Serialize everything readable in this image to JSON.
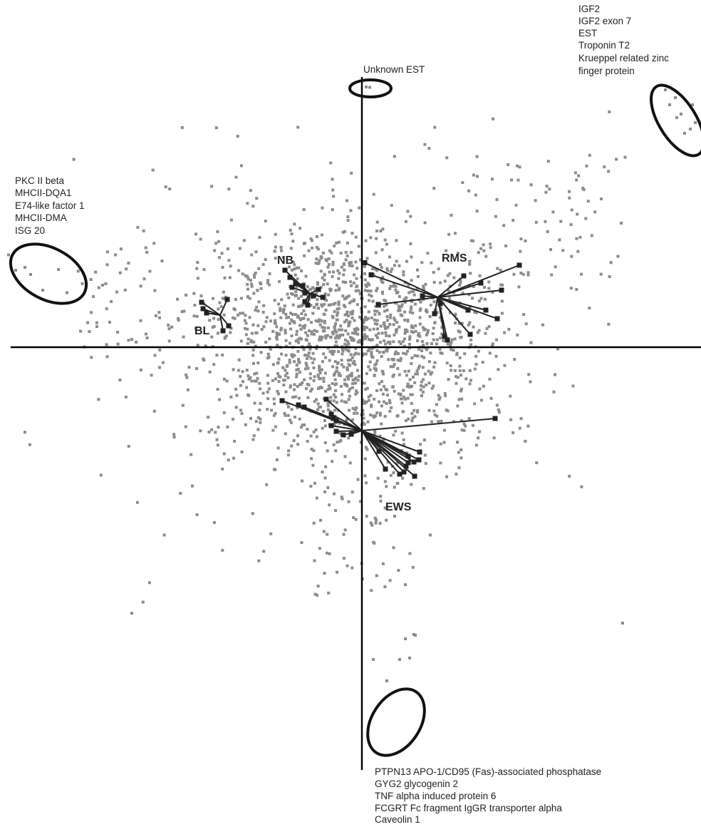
{
  "chart_data": {
    "type": "scatter",
    "title": "",
    "xlabel": "",
    "ylabel": "",
    "grid": false,
    "xlim": [
      -1,
      1
    ],
    "ylim": [
      -1,
      1
    ],
    "colors": {
      "genes": "#8c8c8c",
      "samples": "#222222",
      "axes": "#000000"
    },
    "annotations": [
      {
        "name": "unknown-est",
        "lines": [
          "Unknown EST"
        ]
      },
      {
        "name": "top-right",
        "lines": [
          "IGF2",
          "IGF2 exon 7",
          "EST",
          "Troponin T2",
          "Krueppel related zinc",
          "finger protein"
        ]
      },
      {
        "name": "left",
        "lines": [
          "PKC II beta",
          "MHCII-DQA1",
          "E74-like factor 1",
          "MHCII-DMA",
          "ISG 20"
        ]
      },
      {
        "name": "bottom",
        "lines": [
          "PTPN13 APO-1/CD95 (Fas)-associated phosphatase",
          "GYG2 glycogenin 2",
          "TNF alpha induced protein 6",
          "FCGRT Fc fragment IgGR transporter alpha",
          "Caveolin 1"
        ]
      }
    ],
    "groups": [
      {
        "label": "RMS",
        "centroid": [
          0.2165,
          0.1429
        ],
        "samples": [
          [
            0.0081,
            0.2418
          ],
          [
            0.0264,
            0.2071
          ],
          [
            0.0467,
            0.1224
          ],
          [
            0.1728,
            0.1469
          ],
          [
            0.2073,
            0.0959
          ],
          [
            0.2236,
            0.1255
          ],
          [
            0.2358,
            0.0306
          ],
          [
            0.2439,
            0.0204
          ],
          [
            0.2907,
            0.2041
          ],
          [
            0.3028,
            0.1061
          ],
          [
            0.3089,
            0.0367
          ],
          [
            0.3394,
            0.1837
          ],
          [
            0.3537,
            0.1061
          ],
          [
            0.3862,
            0.0816
          ],
          [
            0.3984,
            0.1633
          ],
          [
            0.4492,
            0.2347
          ]
        ]
      },
      {
        "label": "NB",
        "centroid": [
          -0.1484,
          0.1531
        ],
        "samples": [
          [
            -0.2195,
            0.2204
          ],
          [
            -0.2053,
            0.2
          ],
          [
            -0.1992,
            0.1714
          ],
          [
            -0.189,
            0.1816
          ],
          [
            -0.1687,
            0.1755
          ],
          [
            -0.1626,
            0.1551
          ],
          [
            -0.1626,
            0.1306
          ],
          [
            -0.1545,
            0.1204
          ],
          [
            -0.1382,
            0.1469
          ],
          [
            -0.124,
            0.1653
          ],
          [
            -0.1118,
            0.1429
          ]
        ]
      },
      {
        "label": "BL",
        "centroid": [
          -0.4045,
          0.0918
        ],
        "samples": [
          [
            -0.4573,
            0.1286
          ],
          [
            -0.4533,
            0.1102
          ],
          [
            -0.4431,
            0.098
          ],
          [
            -0.3963,
            0.0469
          ],
          [
            -0.3841,
            0.1367
          ],
          [
            -0.3801,
            0.0612
          ]
        ]
      },
      {
        "label": "EWS",
        "centroid": [
          0.0,
          -0.2388
        ],
        "samples": [
          [
            -0.2276,
            -0.1531
          ],
          [
            -0.1809,
            -0.1653
          ],
          [
            -0.1646,
            -0.1714
          ],
          [
            -0.1016,
            -0.149
          ],
          [
            -0.0874,
            -0.1918
          ],
          [
            -0.0874,
            -0.2245
          ],
          [
            -0.0813,
            -0.2041
          ],
          [
            -0.0732,
            -0.2102
          ],
          [
            -0.0732,
            -0.2408
          ],
          [
            -0.0528,
            -0.251
          ],
          [
            -0.0305,
            -0.249
          ],
          [
            0.0488,
            -0.298
          ],
          [
            0.0671,
            -0.349
          ],
          [
            0.1077,
            -0.3633
          ],
          [
            0.1199,
            -0.3571
          ],
          [
            0.126,
            -0.3408
          ],
          [
            0.1321,
            -0.3306
          ],
          [
            0.1321,
            -0.3122
          ],
          [
            0.1484,
            -0.3286
          ],
          [
            0.1504,
            -0.3694
          ],
          [
            0.1626,
            -0.3224
          ],
          [
            0.1646,
            -0.3
          ],
          [
            0.3801,
            -0.2041
          ]
        ]
      }
    ],
    "outliers": [
      [
        0.0122,
        0.7449
      ],
      [
        0.0224,
        0.7439
      ],
      [
        0.8659,
        0.7367
      ],
      [
        0.878,
        0.6939
      ],
      [
        0.8943,
        0.7143
      ],
      [
        0.8984,
        0.6571
      ],
      [
        0.9106,
        0.6673
      ],
      [
        0.9207,
        0.6122
      ],
      [
        0.937,
        0.6245
      ],
      [
        0.9431,
        0.6939
      ],
      [
        0.9512,
        0.6429
      ],
      [
        -1.0081,
        0.2643
      ],
      [
        -0.9878,
        0.2204
      ],
      [
        -0.9614,
        0.2286
      ],
      [
        -0.9451,
        0.2082
      ],
      [
        -0.9106,
        0.1633
      ],
      [
        -0.8659,
        0.2224
      ],
      [
        0.0325,
        -0.8939
      ],
      [
        0.0711,
        -0.9551
      ],
      [
        0.1077,
        -0.8939
      ],
      [
        0.124,
        -0.8347
      ],
      [
        0.1362,
        -0.8898
      ],
      [
        0.1484,
        -0.8224
      ],
      [
        0.1524,
        -0.8245
      ]
    ],
    "cloud": {
      "count": 1700,
      "center": [
        -0.04,
        0.015
      ],
      "sd": [
        0.2,
        0.16
      ],
      "tails": [
        {
          "count": 60,
          "x_range": [
            -0.15,
            0.15
          ],
          "y_range": [
            -0.72,
            -0.35
          ]
        },
        {
          "count": 70,
          "x_range": [
            0.3,
            0.75
          ],
          "y_range": [
            0.2,
            0.55
          ]
        },
        {
          "count": 50,
          "x_range": [
            -0.8,
            -0.35
          ],
          "y_range": [
            0.0,
            0.3
          ]
        }
      ]
    }
  }
}
